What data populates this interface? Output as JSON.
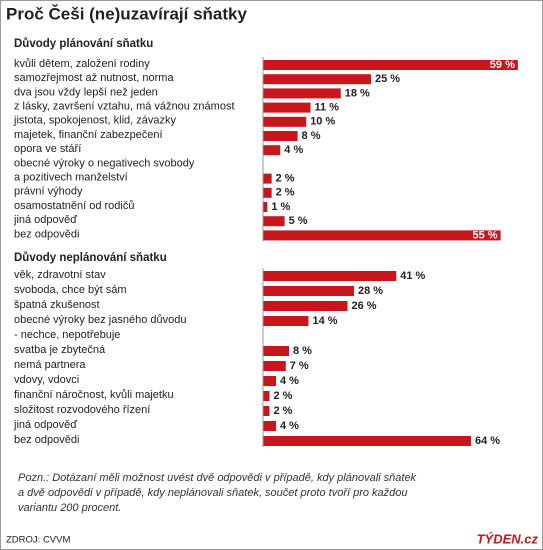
{
  "title": "Proč Češi (ne)uzavírají sňatky",
  "note": [
    "Pozn.: Dotázaní měli možnost uvést dvě odpovědi v případě, kdy plánovali sňatek",
    "a dvě odpovědi v případě, kdy neplánovali sňatek, součet proto tvoří pro každou",
    "variantu 200 procent."
  ],
  "source": "ZDROJ: CVVM",
  "logo": "TÝDEN.cz",
  "chart_data": [
    {
      "type": "bar",
      "title": "Důvody plánování sňatku",
      "color": "#c8161d",
      "categories": [
        [
          "kvůli dětem, založení rodiny"
        ],
        [
          "samozřejmost až nutnost, norma"
        ],
        [
          "dva jsou vždy lepší než jeden"
        ],
        [
          "z lásky, završení vztahu, má vážnou známost"
        ],
        [
          "jistota, spokojenost, klid, závazky"
        ],
        [
          "majetek, finanční zabezpečení"
        ],
        [
          "opora ve stáří"
        ],
        [
          "obecné výroky o negativech svobody",
          "a pozitivech manželství"
        ],
        [
          "právní výhody"
        ],
        [
          "osamostatnění od rodičů"
        ],
        [
          "jiná odpověď"
        ],
        [
          "bez odpovědi"
        ]
      ],
      "values": [
        59,
        25,
        18,
        11,
        10,
        8,
        4,
        2,
        2,
        1,
        5,
        55
      ],
      "value_labels": [
        "59 %",
        "25 %",
        "18 %",
        "11 %",
        "10 %",
        "8 %",
        "4 %",
        "2 %",
        "2 %",
        "1 %",
        "5 %",
        "55 %"
      ]
    },
    {
      "type": "bar",
      "title": "Důvody neplánování sňatku",
      "color": "#c8161d",
      "categories": [
        [
          "věk, zdravotní stav"
        ],
        [
          "svoboda, chce být sám"
        ],
        [
          "špatná zkušenost"
        ],
        [
          "obecné výroky bez jasného důvodu",
          "- nechce, nepotřebuje"
        ],
        [
          "svatba je zbytečná"
        ],
        [
          "nemá partnera"
        ],
        [
          "vdovy, vdovci"
        ],
        [
          "finanční náročnost, kvůli majetku"
        ],
        [
          "složitost rozvodového řízení"
        ],
        [
          "jiná odpověď"
        ],
        [
          "bez odpovědi"
        ]
      ],
      "values": [
        41,
        28,
        26,
        14,
        8,
        7,
        4,
        2,
        2,
        4,
        64
      ],
      "value_labels": [
        "41 %",
        "28 %",
        "26 %",
        "14 %",
        "8 %",
        "7 %",
        "4 %",
        "2 %",
        "2 %",
        "4 %",
        "64 %"
      ]
    }
  ]
}
